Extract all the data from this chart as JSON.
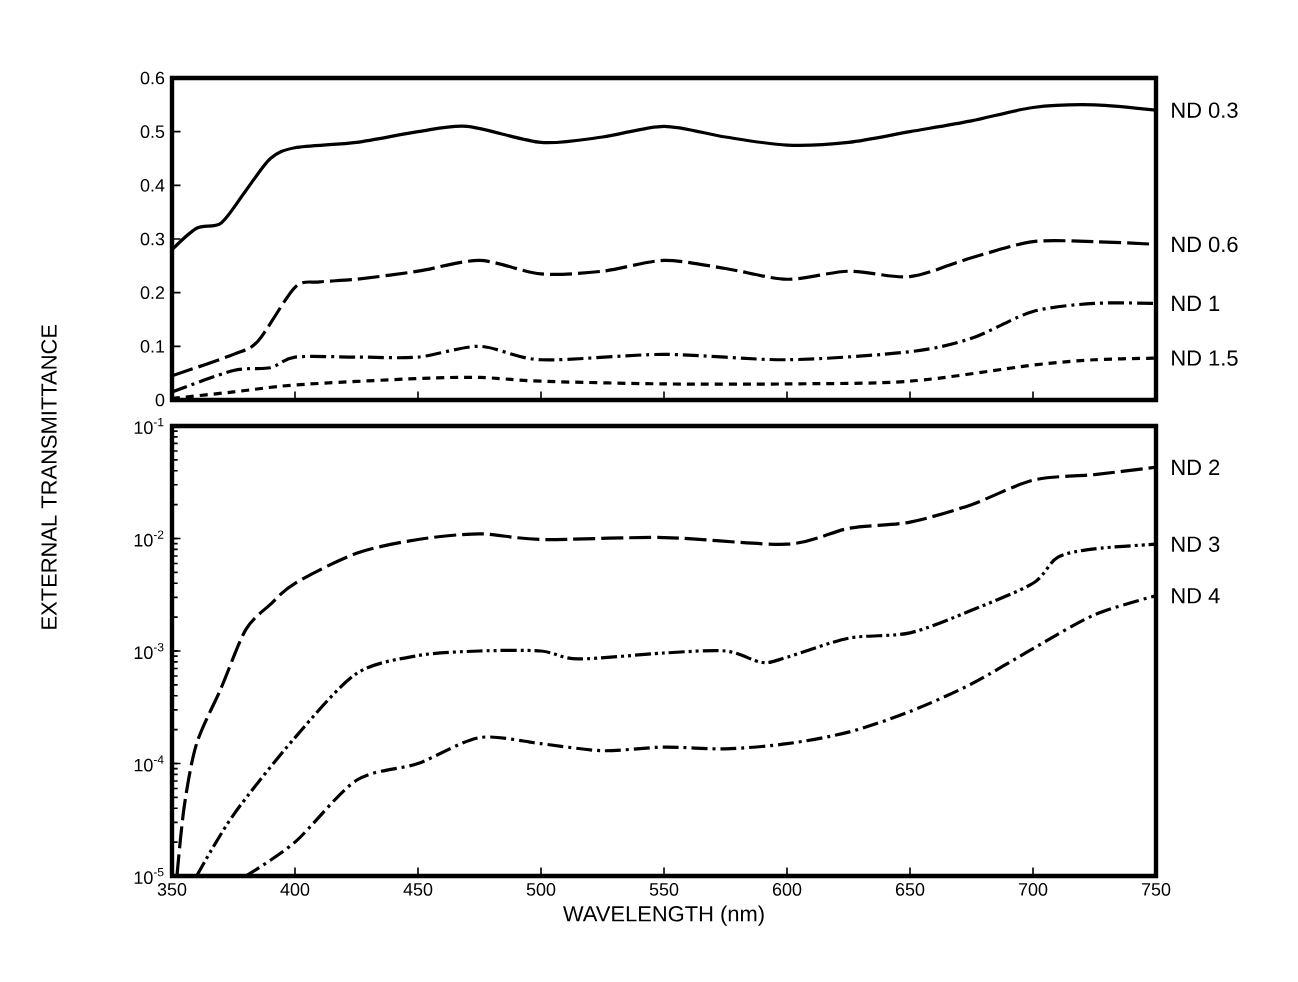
{
  "chart_data": [
    {
      "type": "line",
      "ylabel": "EXTERNAL TRANSMITTANCE",
      "xlim": [
        350,
        750
      ],
      "xticks": [
        {
          "value": 350,
          "label": null
        },
        {
          "value": 400,
          "label": null
        },
        {
          "value": 450,
          "label": null
        },
        {
          "value": 500,
          "label": null
        },
        {
          "value": 550,
          "label": null
        },
        {
          "value": 600,
          "label": null
        },
        {
          "value": 650,
          "label": null
        },
        {
          "value": 700,
          "label": null
        },
        {
          "value": 750,
          "label": null
        }
      ],
      "ylim": [
        0,
        0.6
      ],
      "yticks": [
        0,
        0.1,
        0.2,
        0.3,
        0.4,
        0.5,
        0.6
      ],
      "tick_labels": "y",
      "grid": false,
      "series": [
        {
          "name": "ND 0.3",
          "color": "#000000",
          "line_style": "solid",
          "x": [
            350,
            360,
            370,
            380,
            390,
            400,
            425,
            450,
            470,
            500,
            525,
            550,
            575,
            600,
            625,
            650,
            675,
            700,
            725,
            750
          ],
          "values": [
            0.28,
            0.32,
            0.33,
            0.39,
            0.45,
            0.47,
            0.48,
            0.5,
            0.51,
            0.48,
            0.49,
            0.51,
            0.49,
            0.475,
            0.48,
            0.5,
            0.52,
            0.545,
            0.55,
            0.54
          ]
        },
        {
          "name": "ND 0.6",
          "color": "#000000",
          "line_style": "longdash",
          "x": [
            350,
            375,
            385,
            400,
            410,
            425,
            450,
            475,
            500,
            525,
            550,
            575,
            600,
            625,
            650,
            675,
            700,
            725,
            750
          ],
          "values": [
            0.045,
            0.085,
            0.11,
            0.21,
            0.22,
            0.225,
            0.24,
            0.26,
            0.235,
            0.24,
            0.26,
            0.245,
            0.225,
            0.24,
            0.23,
            0.265,
            0.295,
            0.295,
            0.29
          ]
        },
        {
          "name": "ND 1",
          "color": "#000000",
          "line_style": "dashdot",
          "x": [
            350,
            375,
            390,
            400,
            425,
            450,
            475,
            500,
            550,
            600,
            650,
            675,
            700,
            725,
            750
          ],
          "values": [
            0.015,
            0.055,
            0.06,
            0.08,
            0.08,
            0.08,
            0.1,
            0.075,
            0.085,
            0.075,
            0.09,
            0.115,
            0.165,
            0.18,
            0.18
          ]
        },
        {
          "name": "ND 1.5",
          "color": "#000000",
          "line_style": "dashed",
          "x": [
            350,
            375,
            400,
            450,
            475,
            500,
            550,
            600,
            650,
            700,
            725,
            750
          ],
          "values": [
            0.003,
            0.015,
            0.028,
            0.04,
            0.042,
            0.035,
            0.03,
            0.03,
            0.035,
            0.065,
            0.075,
            0.078
          ]
        }
      ]
    },
    {
      "type": "line",
      "xlabel": "WAVELENGTH (nm)",
      "xlim": [
        350,
        750
      ],
      "xticks": [
        350,
        400,
        450,
        500,
        550,
        600,
        650,
        700,
        750
      ],
      "ylim": [
        1e-05,
        0.1
      ],
      "log": true,
      "grid": false,
      "yticks": [
        {
          "value": 1e-05,
          "label": "10$^{-5}$"
        },
        {
          "value": 0.0001,
          "label": "10$^{-4}$"
        },
        {
          "value": 0.001,
          "label": "10$^{-3}$"
        },
        {
          "value": 0.01,
          "label": "10$^{-2}$"
        },
        {
          "value": 0.1,
          "label": "10$^{-1}$"
        }
      ],
      "series": [
        {
          "name": "ND 2",
          "color": "#000000",
          "line_style": "longdash",
          "x": [
            352,
            355,
            360,
            370,
            380,
            390,
            400,
            425,
            450,
            475,
            500,
            550,
            600,
            625,
            650,
            675,
            700,
            725,
            750
          ],
          "values": [
            1e-05,
            4.2e-05,
            0.00015,
            0.00047,
            0.00155,
            0.0026,
            0.004,
            0.0074,
            0.0098,
            0.011,
            0.0098,
            0.0102,
            0.0089,
            0.0123,
            0.014,
            0.02,
            0.033,
            0.037,
            0.043
          ]
        },
        {
          "name": "ND 3",
          "color": "#000000",
          "line_style": "dashdotdot",
          "x": [
            360,
            375,
            400,
            425,
            450,
            475,
            500,
            515,
            550,
            575,
            590,
            600,
            625,
            650,
            675,
            700,
            710,
            725,
            750
          ],
          "values": [
            1e-05,
            3.5e-05,
            0.00017,
            0.00063,
            0.00091,
            0.001,
            0.001,
            0.00085,
            0.00096,
            0.001,
            0.00079,
            0.00088,
            0.0013,
            0.00145,
            0.0023,
            0.004,
            0.0068,
            0.0081,
            0.0089
          ]
        },
        {
          "name": "ND 4",
          "color": "#000000",
          "line_style": "dashdot",
          "x": [
            380,
            400,
            425,
            450,
            475,
            500,
            525,
            550,
            575,
            600,
            625,
            650,
            675,
            700,
            725,
            750
          ],
          "values": [
            1e-05,
            2e-05,
            7.1e-05,
            0.0001,
            0.00017,
            0.00015,
            0.00013,
            0.00014,
            0.000135,
            0.00015,
            0.00019,
            0.00029,
            0.00051,
            0.00105,
            0.0021,
            0.0031
          ]
        }
      ]
    }
  ]
}
